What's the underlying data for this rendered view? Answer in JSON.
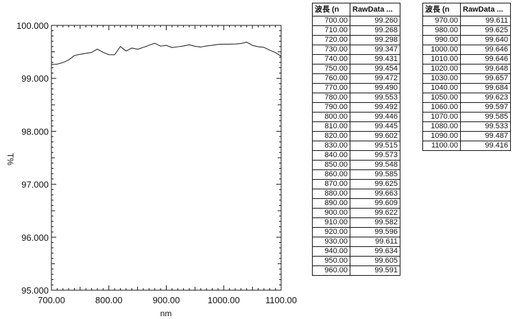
{
  "chart_data": {
    "type": "line",
    "xlabel": "nm",
    "ylabel": "T%",
    "xlim": [
      700,
      1100
    ],
    "ylim": [
      95,
      100
    ],
    "x_ticks": [
      "700.00",
      "800.00",
      "900.00",
      "1000.00",
      "1100.00"
    ],
    "y_ticks": [
      "100.000",
      "99.000",
      "98.000",
      "97.000",
      "96.000",
      "95.000"
    ],
    "series": [
      {
        "color": "#111111",
        "x": [
          700,
          710,
          720,
          730,
          740,
          750,
          760,
          770,
          780,
          790,
          800,
          810,
          820,
          830,
          840,
          850,
          860,
          870,
          880,
          890,
          900,
          910,
          920,
          930,
          940,
          950,
          960,
          970,
          980,
          990,
          1000,
          1010,
          1020,
          1030,
          1040,
          1050,
          1060,
          1070,
          1080,
          1090,
          1100
        ],
        "y": [
          99.26,
          99.268,
          99.298,
          99.347,
          99.431,
          99.454,
          99.472,
          99.49,
          99.553,
          99.492,
          99.446,
          99.445,
          99.602,
          99.515,
          99.573,
          99.548,
          99.585,
          99.625,
          99.663,
          99.609,
          99.622,
          99.582,
          99.596,
          99.611,
          99.634,
          99.605,
          99.591,
          99.611,
          99.625,
          99.64,
          99.646,
          99.646,
          99.648,
          99.657,
          99.684,
          99.623,
          99.597,
          99.585,
          99.533,
          99.487,
          99.416
        ]
      }
    ]
  },
  "tables": [
    {
      "headers": [
        "波長 (n",
        "RawData ..."
      ],
      "rows": [
        [
          "700.00",
          "99.260"
        ],
        [
          "710.00",
          "99.268"
        ],
        [
          "720.00",
          "99.298"
        ],
        [
          "730.00",
          "99.347"
        ],
        [
          "740.00",
          "99.431"
        ],
        [
          "750.00",
          "99.454"
        ],
        [
          "760.00",
          "99.472"
        ],
        [
          "770.00",
          "99.490"
        ],
        [
          "780.00",
          "99.553"
        ],
        [
          "790.00",
          "99.492"
        ],
        [
          "800.00",
          "99.446"
        ],
        [
          "810.00",
          "99.445"
        ],
        [
          "820.00",
          "99.602"
        ],
        [
          "830.00",
          "99.515"
        ],
        [
          "840.00",
          "99.573"
        ],
        [
          "850.00",
          "99.548"
        ],
        [
          "860.00",
          "99.585"
        ],
        [
          "870.00",
          "99.625"
        ],
        [
          "880.00",
          "99.663"
        ],
        [
          "890.00",
          "99.609"
        ],
        [
          "900.00",
          "99.622"
        ],
        [
          "910.00",
          "99.582"
        ],
        [
          "920.00",
          "99.596"
        ],
        [
          "930.00",
          "99.611"
        ],
        [
          "940.00",
          "99.634"
        ],
        [
          "950.00",
          "99.605"
        ],
        [
          "960.00",
          "99.591"
        ]
      ]
    },
    {
      "headers": [
        "波長 (n",
        "RawData ..."
      ],
      "rows": [
        [
          "970.00",
          "99.611"
        ],
        [
          "980.00",
          "99.625"
        ],
        [
          "990.00",
          "99.640"
        ],
        [
          "1000.00",
          "99.646"
        ],
        [
          "1010.00",
          "99.646"
        ],
        [
          "1020.00",
          "99.648"
        ],
        [
          "1030.00",
          "99.657"
        ],
        [
          "1040.00",
          "99.684"
        ],
        [
          "1050.00",
          "99.623"
        ],
        [
          "1060.00",
          "99.597"
        ],
        [
          "1070.00",
          "99.585"
        ],
        [
          "1080.00",
          "99.533"
        ],
        [
          "1090.00",
          "99.487"
        ],
        [
          "1100.00",
          "99.416"
        ]
      ]
    }
  ]
}
